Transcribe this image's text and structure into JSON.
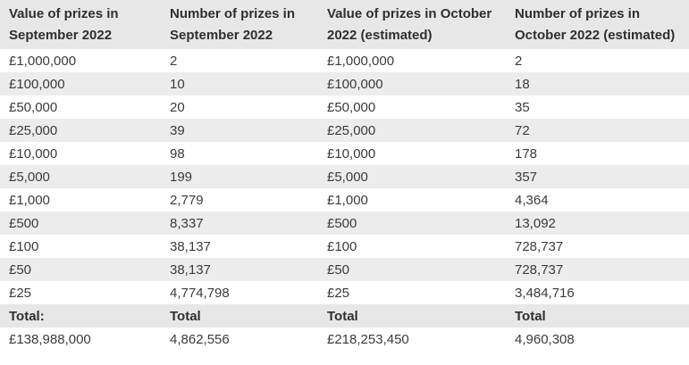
{
  "chart_data": {
    "type": "table",
    "columns": [
      "Value of prizes in September 2022",
      "Number of prizes in September 2022",
      "Value of prizes in October 2022 (estimated)",
      "Number of prizes in October 2022 (estimated)"
    ],
    "rows": [
      [
        "£1,000,000",
        "2",
        "£1,000,000",
        "2"
      ],
      [
        "£100,000",
        "10",
        "£100,000",
        "18"
      ],
      [
        "£50,000",
        "20",
        "£50,000",
        "35"
      ],
      [
        "£25,000",
        "39",
        "£25,000",
        "72"
      ],
      [
        "£10,000",
        "98",
        "£10,000",
        "178"
      ],
      [
        "£5,000",
        "199",
        "£5,000",
        "357"
      ],
      [
        "£1,000",
        "2,779",
        "£1,000",
        "4,364"
      ],
      [
        "£500",
        "8,337",
        "£500",
        "13,092"
      ],
      [
        "£100",
        "38,137",
        "£100",
        "728,737"
      ],
      [
        "£50",
        "38,137",
        "£50",
        "728,737"
      ],
      [
        "£25",
        "4,774,798",
        "£25",
        "3,484,716"
      ]
    ],
    "total_labels": [
      "Total:",
      "Total",
      "Total",
      "Total"
    ],
    "total_values": [
      "£138,988,000",
      "4,862,556",
      "£218,253,450",
      "4,960,308"
    ]
  },
  "colors": {
    "header_bg": "#e7e7e7",
    "stripe_bg": "#ececec",
    "text": "#3b3b3b",
    "bold_text": "#2f2f2f",
    "page_bg": "#ffffff"
  }
}
